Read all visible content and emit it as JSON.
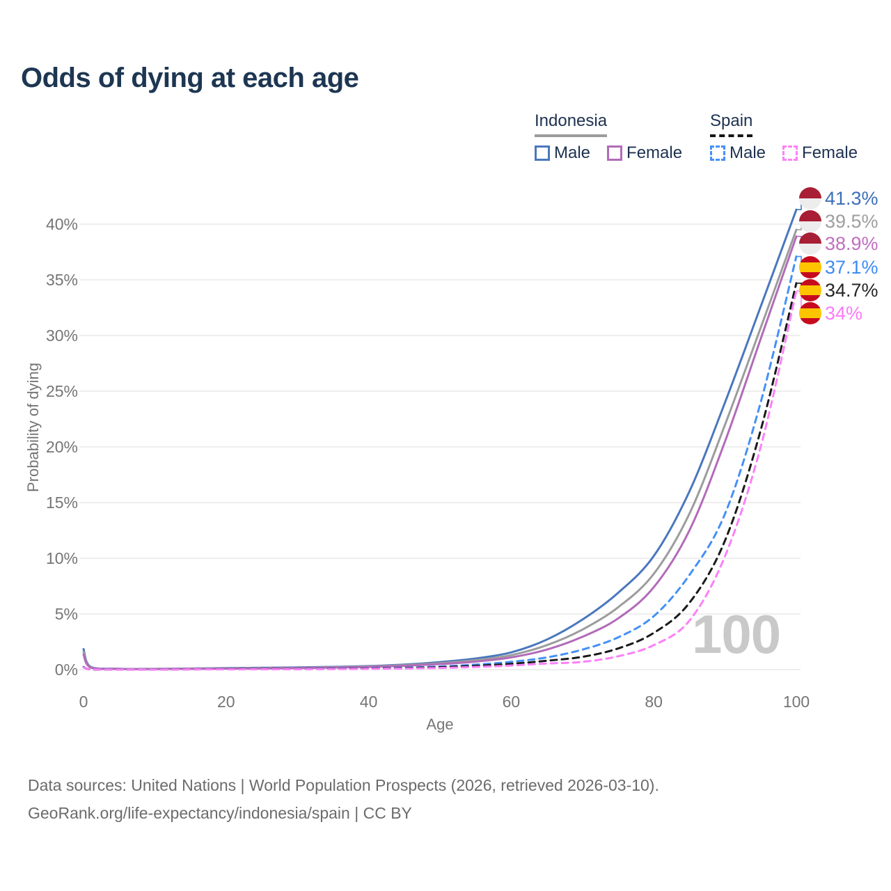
{
  "title": "Odds of dying at each age",
  "legend": {
    "groups": [
      {
        "label": "Indonesia",
        "underline_style": "solid",
        "underline_color": "#9c9c9c",
        "items": [
          {
            "label": "Male",
            "color": "#4a77bd",
            "dash": false
          },
          {
            "label": "Female",
            "color": "#b26bb8",
            "dash": false
          }
        ]
      },
      {
        "label": "Spain",
        "underline_style": "dashed",
        "underline_color": "#161616",
        "items": [
          {
            "label": "Male",
            "color": "#4590f7",
            "dash": true
          },
          {
            "label": "Female",
            "color": "#fb80f8",
            "dash": true
          }
        ]
      }
    ]
  },
  "chart_data": {
    "type": "line",
    "xlabel": "Age",
    "ylabel": "Probability of dying",
    "x_ticks": [
      0,
      20,
      40,
      60,
      80,
      100
    ],
    "y_ticks": [
      0,
      5,
      10,
      15,
      20,
      25,
      30,
      35,
      40
    ],
    "xlim": [
      0,
      100
    ],
    "ylim": [
      0,
      43
    ],
    "grid": true,
    "watermark": "100",
    "x": [
      0,
      1,
      5,
      10,
      15,
      20,
      25,
      30,
      35,
      40,
      45,
      50,
      55,
      60,
      65,
      70,
      75,
      80,
      85,
      90,
      95,
      100
    ],
    "series": [
      {
        "name": "Indonesia Male",
        "country": "Indonesia",
        "sex": "Male",
        "color": "#4a77bd",
        "dash": false,
        "flag": "id",
        "end_label": "41.3%",
        "label_color": "#3d6fb8",
        "values": [
          1.85,
          0.25,
          0.08,
          0.07,
          0.1,
          0.14,
          0.17,
          0.2,
          0.25,
          0.32,
          0.45,
          0.68,
          1.0,
          1.55,
          2.7,
          4.5,
          6.9,
          10.2,
          16.0,
          24.0,
          32.6,
          41.3
        ]
      },
      {
        "name": "Indonesia Both sexes",
        "country": "Indonesia",
        "sex": "Both",
        "color": "#9c9c9c",
        "dash": false,
        "flag": "id",
        "end_label": "39.5%",
        "label_color": "#9e9e9e",
        "values": [
          1.6,
          0.22,
          0.07,
          0.06,
          0.09,
          0.12,
          0.14,
          0.17,
          0.21,
          0.28,
          0.4,
          0.58,
          0.85,
          1.3,
          2.2,
          3.6,
          5.6,
          8.6,
          14.0,
          22.0,
          30.7,
          39.5
        ]
      },
      {
        "name": "Indonesia Female",
        "country": "Indonesia",
        "sex": "Female",
        "color": "#b26bb8",
        "dash": false,
        "flag": "id",
        "end_label": "38.9%",
        "label_color": "#c06ec0",
        "values": [
          1.35,
          0.2,
          0.06,
          0.05,
          0.07,
          0.09,
          0.11,
          0.14,
          0.18,
          0.24,
          0.34,
          0.5,
          0.72,
          1.1,
          1.8,
          2.95,
          4.6,
          7.4,
          12.5,
          20.5,
          29.7,
          38.9
        ]
      },
      {
        "name": "Spain Male",
        "country": "Spain",
        "sex": "Male",
        "color": "#4590f7",
        "dash": true,
        "flag": "es",
        "end_label": "37.1%",
        "label_color": "#3d8af7",
        "values": [
          0.25,
          0.03,
          0.015,
          0.015,
          0.03,
          0.05,
          0.06,
          0.07,
          0.09,
          0.12,
          0.18,
          0.28,
          0.45,
          0.7,
          1.1,
          1.8,
          2.9,
          4.8,
          8.5,
          14.0,
          24.0,
          37.1
        ]
      },
      {
        "name": "Spain Both sexes",
        "country": "Spain",
        "sex": "Both",
        "color": "#1a1a1a",
        "dash": true,
        "flag": "es",
        "end_label": "34.7%",
        "label_color": "#262626",
        "values": [
          0.22,
          0.025,
          0.012,
          0.012,
          0.025,
          0.04,
          0.05,
          0.055,
          0.07,
          0.1,
          0.14,
          0.22,
          0.34,
          0.52,
          0.8,
          1.15,
          1.9,
          3.3,
          6.0,
          11.6,
          21.5,
          34.7
        ]
      },
      {
        "name": "Spain Female",
        "country": "Spain",
        "sex": "Female",
        "color": "#fb80f8",
        "dash": true,
        "flag": "es",
        "end_label": "34%",
        "label_color": "#fb7bf7",
        "values": [
          0.2,
          0.02,
          0.01,
          0.01,
          0.02,
          0.025,
          0.03,
          0.04,
          0.05,
          0.07,
          0.1,
          0.15,
          0.24,
          0.37,
          0.55,
          0.7,
          1.2,
          2.2,
          4.4,
          10.2,
          20.0,
          34.0
        ]
      }
    ]
  },
  "footer": {
    "line1": "Data sources: United Nations | World Population Prospects (2026, retrieved 2026-03-10).",
    "line2": "GeoRank.org/life-expectancy/indonesia/spain | CC BY"
  }
}
